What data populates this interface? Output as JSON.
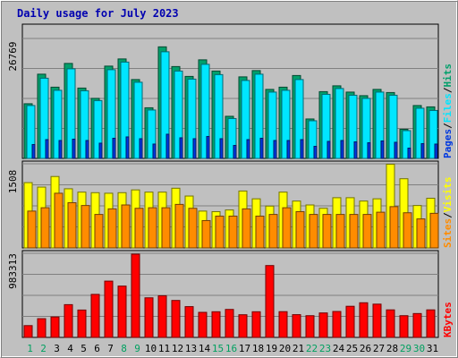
{
  "chart_data": {
    "type": "bar",
    "title": "Daily usage for July 2023",
    "categories": [
      "1",
      "2",
      "3",
      "4",
      "5",
      "6",
      "7",
      "8",
      "9",
      "10",
      "11",
      "12",
      "13",
      "14",
      "15",
      "16",
      "17",
      "18",
      "19",
      "20",
      "21",
      "22",
      "23",
      "24",
      "25",
      "26",
      "27",
      "28",
      "29",
      "30",
      "31"
    ],
    "weekend_days": [
      "1",
      "2",
      "8",
      "9",
      "15",
      "16",
      "22",
      "23",
      "29",
      "30"
    ],
    "panels": [
      {
        "name": "hits-files-pages",
        "ymax_label": "26769",
        "ymax": 26769,
        "axis_labels": [
          "Pages",
          "/",
          "Files",
          "/",
          "Hits"
        ],
        "series": [
          {
            "name": "Hits",
            "color": "#00a06b",
            "values": [
              12200,
              18800,
              15900,
              21200,
              15700,
              13400,
              20600,
              22200,
              17600,
              11300,
              24900,
              20500,
              18300,
              22000,
              19500,
              9400,
              18200,
              19600,
              15400,
              15900,
              18500,
              8800,
              14900,
              16200,
              14800,
              14000,
              15400,
              14700,
              6500,
              11800,
              11500
            ]
          },
          {
            "name": "Files",
            "color": "#00e6ff",
            "values": [
              11800,
              17900,
              15200,
              20000,
              15100,
              12900,
              19800,
              21500,
              17000,
              10800,
              23800,
              19500,
              17700,
              21000,
              18700,
              8900,
              17400,
              18800,
              14800,
              15200,
              17600,
              8400,
              14300,
              15600,
              14100,
              13400,
              14800,
              14100,
              6200,
              11200,
              10700
            ]
          },
          {
            "name": "Pages",
            "color": "#0038e0",
            "values": [
              3100,
              4200,
              4000,
              4300,
              4000,
              3400,
              4500,
              4800,
              4400,
              3200,
              5400,
              4600,
              4400,
              4900,
              4400,
              2900,
              4200,
              4500,
              4000,
              4000,
              4200,
              2700,
              3800,
              4000,
              3700,
              3500,
              3900,
              3600,
              2300,
              3300,
              3200
            ]
          }
        ]
      },
      {
        "name": "visits-sites",
        "ymax_label": "1508",
        "ymax": 1508,
        "axis_labels": [
          "Sites",
          "/",
          "Visits"
        ],
        "series": [
          {
            "name": "Visits",
            "color": "#ffff00",
            "values": [
              1170,
              1090,
              1280,
              1060,
              1000,
              990,
              980,
              990,
              1040,
              1000,
              1000,
              1070,
              930,
              660,
              650,
              680,
              1020,
              880,
              750,
              1000,
              840,
              770,
              710,
              900,
              900,
              840,
              880,
              1500,
              1240,
              760,
              890
            ]
          },
          {
            "name": "Sites",
            "color": "#ff8c00",
            "values": [
              660,
              720,
              980,
              810,
              760,
              600,
              700,
              770,
              710,
              720,
              720,
              780,
              710,
              490,
              570,
              570,
              700,
              570,
              600,
              720,
              650,
              600,
              600,
              600,
              600,
              600,
              640,
              740,
              630,
              520,
              620
            ]
          }
        ]
      },
      {
        "name": "kbytes",
        "ymax_label": "983313",
        "ymax": 983313,
        "axis_labels": [
          "KBytes"
        ],
        "series": [
          {
            "name": "KBytes",
            "color": "#ff0000",
            "values": [
              138000,
              219000,
              239000,
              383000,
              320000,
              503000,
              658000,
              600000,
              973000,
              463000,
              487000,
              432000,
              360000,
              293000,
              300000,
              327000,
              265000,
              300000,
              840000,
              301000,
              266000,
              254000,
              286000,
              303000,
              364000,
              405000,
              389000,
              322000,
              254000,
              279000,
              322000
            ]
          }
        ]
      }
    ]
  }
}
